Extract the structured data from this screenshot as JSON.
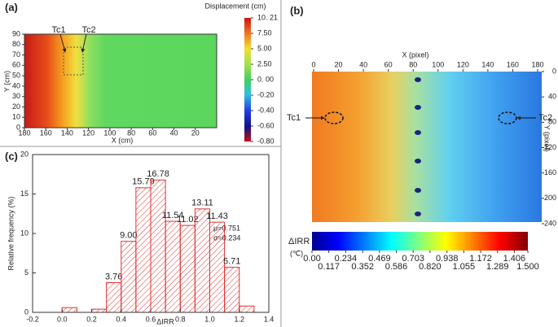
{
  "chart_data": [
    {
      "type": "heatmap",
      "panel_label": "(a)",
      "x_label": "X (cm)",
      "y_label": "Y (cm)",
      "xlim": [
        180,
        0
      ],
      "xticks": [
        180,
        160,
        140,
        120,
        100,
        80,
        60,
        40,
        20
      ],
      "ylim": [
        0,
        90
      ],
      "yticks": [
        0,
        10,
        20,
        30,
        40,
        50,
        60,
        70,
        80,
        90
      ],
      "annotations": [
        "Tc1",
        "Tc2"
      ],
      "colorbar": {
        "title": "Displacement (cm)",
        "ticks": [
          {
            "value": 10.21,
            "label": "10. 21"
          },
          {
            "value": 7.5,
            "label": "7.50"
          },
          {
            "value": 5,
            "label": "5.00"
          },
          {
            "value": 2.5,
            "label": "2.50"
          },
          {
            "value": 0,
            "label": "0. 00"
          },
          {
            "value": -0.2,
            "label": "-0.20"
          },
          {
            "value": -0.4,
            "label": "-0.40"
          },
          {
            "value": -0.6,
            "label": "-0.60"
          },
          {
            "value": -0.8,
            "label": "-0.80"
          }
        ]
      }
    },
    {
      "type": "image",
      "panel_label": "(b)",
      "x_label": "X (pixel)",
      "y_label": "Y (pixel)",
      "xlim": [
        0,
        180
      ],
      "xticks": [
        0,
        20,
        40,
        60,
        80,
        100,
        120,
        140,
        160,
        180
      ],
      "ylim": [
        0,
        240
      ],
      "yticks": [
        0,
        40,
        80,
        120,
        160,
        200,
        240
      ],
      "annotations": [
        "Tc1",
        "Tc2"
      ],
      "colorbar": {
        "title": "ΔIRR",
        "unit": "(℃)",
        "lim": [
          0,
          1.5
        ],
        "ticks": [
          {
            "value": 0,
            "label": "0.00"
          },
          0.117,
          0.234,
          0.352,
          0.469,
          0.586,
          0.703,
          {
            "value": 0.82,
            "label": "0.820"
          },
          0.938,
          1.055,
          1.172,
          1.289,
          1.406,
          {
            "value": 1.5,
            "label": "1.500"
          }
        ]
      }
    },
    {
      "type": "histogram",
      "panel_label": "(c)",
      "x_label": "ΔIRR",
      "y_label": "Relative frequency (%)",
      "bins": [
        0,
        0.1,
        0.2,
        0.3,
        0.4,
        0.5,
        0.6,
        0.7,
        0.8,
        0.9,
        1.0,
        1.1,
        1.2,
        1.3
      ],
      "values": [
        0.6,
        0,
        0.4,
        3.76,
        9.0,
        15.79,
        16.78,
        11.54,
        11.02,
        13.11,
        11.43,
        5.71,
        0.8
      ],
      "value_labels": [
        null,
        null,
        null,
        "3.76",
        "9.00",
        "15.79",
        "16.78",
        "11.54",
        "11.02",
        "13.11",
        "11.43",
        "5.71",
        null
      ],
      "color": "#e03030",
      "xlim": [
        -0.2,
        1.4
      ],
      "xticks": [
        -0.2,
        {
          "value": 0,
          "label": "0.0"
        },
        0.2,
        0.4,
        0.6,
        0.8,
        {
          "value": 1,
          "label": "1.0"
        },
        1.2,
        1.4
      ],
      "ylim": [
        0,
        20
      ],
      "yticks": [
        0,
        5,
        10,
        15,
        20
      ],
      "annotations": [
        "μ=0.751",
        "σ=0.234"
      ]
    }
  ]
}
